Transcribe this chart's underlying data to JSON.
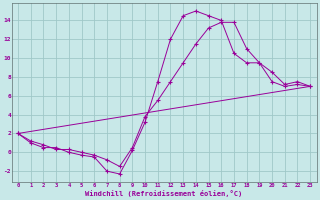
{
  "title": "",
  "xlabel": "Windchill (Refroidissement éolien,°C)",
  "background_color": "#c8e8e8",
  "line_color": "#990099",
  "grid_color": "#a0c8c8",
  "xlim": [
    -0.5,
    23.5
  ],
  "ylim": [
    -3.2,
    15.8
  ],
  "xticks": [
    0,
    1,
    2,
    3,
    4,
    5,
    6,
    7,
    8,
    9,
    10,
    11,
    12,
    13,
    14,
    15,
    16,
    17,
    18,
    19,
    20,
    21,
    22,
    23
  ],
  "yticks": [
    -2,
    0,
    2,
    4,
    6,
    8,
    10,
    12,
    14
  ],
  "line1_x": [
    0,
    1,
    2,
    3,
    4,
    5,
    6,
    7,
    8,
    9,
    10,
    11,
    12,
    13,
    14,
    15,
    16,
    17,
    18,
    19,
    20,
    21,
    22,
    23
  ],
  "line1_y": [
    2.0,
    1.0,
    0.5,
    0.5,
    0.0,
    -0.3,
    -0.5,
    -2.0,
    -2.3,
    0.2,
    3.2,
    7.5,
    12.0,
    14.5,
    15.0,
    14.5,
    14.0,
    10.5,
    9.5,
    9.5,
    8.5,
    7.2,
    7.5,
    7.0
  ],
  "line2_x": [
    0,
    1,
    2,
    3,
    4,
    5,
    6,
    7,
    8,
    9,
    10,
    11,
    12,
    13,
    14,
    15,
    16,
    17,
    18,
    19,
    20,
    21,
    22,
    23
  ],
  "line2_y": [
    2.0,
    1.2,
    0.8,
    0.3,
    0.3,
    0.0,
    -0.3,
    -0.8,
    -1.5,
    0.5,
    3.8,
    5.5,
    7.5,
    9.5,
    11.5,
    13.2,
    13.8,
    13.8,
    11.0,
    9.5,
    7.5,
    7.0,
    7.2,
    7.0
  ],
  "line3_x": [
    0,
    23
  ],
  "line3_y": [
    2.0,
    7.0
  ],
  "figwidth": 3.2,
  "figheight": 2.0,
  "dpi": 100
}
